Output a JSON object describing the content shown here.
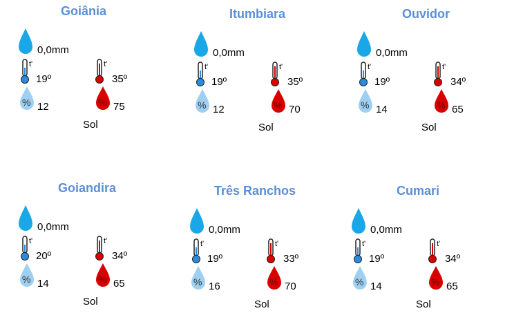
{
  "colors": {
    "title": "#5b8fd6",
    "rain_drop": "#1aa7e8",
    "cold": "#2b8be0",
    "hot": "#d90000",
    "humidity_low": "#9fd0f2",
    "humidity_high": "#d90000"
  },
  "icons": [
    "rain-drop-icon",
    "thermometer-min-icon",
    "thermometer-max-icon",
    "humidity-min-icon",
    "humidity-max-icon"
  ],
  "cities": [
    {
      "name": "Goiânia",
      "precip": "0,0mm",
      "tmin": "19º",
      "tmax": "35º",
      "hmin": "12",
      "hmax": "75",
      "condition": "Sol"
    },
    {
      "name": "Itumbiara",
      "precip": "0,0mm",
      "tmin": "19º",
      "tmax": "35º",
      "hmin": "12",
      "hmax": "70",
      "condition": "Sol"
    },
    {
      "name": "Ouvidor",
      "precip": "0,0mm",
      "tmin": "19º",
      "tmax": "34º",
      "hmin": "14",
      "hmax": "65",
      "condition": "Sol"
    },
    {
      "name": "Goiandira",
      "precip": "0,0mm",
      "tmin": "20º",
      "tmax": "34º",
      "hmin": "14",
      "hmax": "65",
      "condition": "Sol"
    },
    {
      "name": "Três Ranchos",
      "precip": "0,0mm",
      "tmin": "19º",
      "tmax": "33º",
      "hmin": "16",
      "hmax": "70",
      "condition": "Sol"
    },
    {
      "name": "Cumari",
      "precip": "0,0mm",
      "tmin": "19º",
      "tmax": "34º",
      "hmin": "14",
      "hmax": "65",
      "condition": "Sol"
    }
  ]
}
